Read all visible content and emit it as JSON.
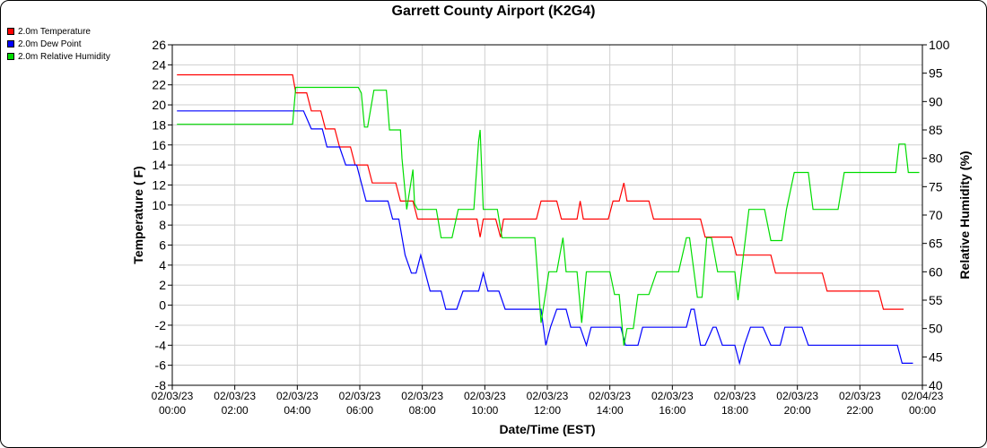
{
  "chart_data": {
    "type": "line",
    "title": "Garrett County Airport (K2G4)",
    "xlabel": "Date/Time (EST)",
    "ylabel": "Temperature ( F)",
    "y2label": "Relative Humidity (%)",
    "xlim": [
      0,
      24
    ],
    "ylim": [
      -8,
      26
    ],
    "y2lim": [
      40,
      100
    ],
    "grid": true,
    "legend_placement": "top-left",
    "x_ticks": [
      {
        "value": 0,
        "date": "02/03/23",
        "time": "00:00"
      },
      {
        "value": 2,
        "date": "02/03/23",
        "time": "02:00"
      },
      {
        "value": 4,
        "date": "02/03/23",
        "time": "04:00"
      },
      {
        "value": 6,
        "date": "02/03/23",
        "time": "06:00"
      },
      {
        "value": 8,
        "date": "02/03/23",
        "time": "08:00"
      },
      {
        "value": 10,
        "date": "02/03/23",
        "time": "10:00"
      },
      {
        "value": 12,
        "date": "02/03/23",
        "time": "12:00"
      },
      {
        "value": 14,
        "date": "02/03/23",
        "time": "14:00"
      },
      {
        "value": 16,
        "date": "02/03/23",
        "time": "16:00"
      },
      {
        "value": 18,
        "date": "02/03/23",
        "time": "18:00"
      },
      {
        "value": 20,
        "date": "02/03/23",
        "time": "20:00"
      },
      {
        "value": 22,
        "date": "02/03/23",
        "time": "22:00"
      },
      {
        "value": 24,
        "date": "02/04/23",
        "time": "00:00"
      }
    ],
    "y_ticks": [
      "26",
      "24",
      "22",
      "20",
      "18",
      "16",
      "14",
      "12",
      "10",
      "8",
      "6",
      "4",
      "2",
      "0",
      "-2",
      "-4",
      "-6",
      "-8"
    ],
    "y2_ticks": [
      "100",
      "95",
      "90",
      "85",
      "80",
      "75",
      "70",
      "65",
      "60",
      "55",
      "50",
      "45",
      "40"
    ],
    "series": [
      {
        "name": "2.0m Temperature",
        "color": "#ff0000",
        "axis": "left",
        "points": [
          [
            0.15,
            23
          ],
          [
            3.85,
            23
          ],
          [
            3.95,
            21.2
          ],
          [
            4.3,
            21.2
          ],
          [
            4.45,
            19.4
          ],
          [
            4.75,
            19.4
          ],
          [
            4.9,
            17.6
          ],
          [
            5.2,
            17.6
          ],
          [
            5.35,
            15.8
          ],
          [
            5.7,
            15.8
          ],
          [
            5.85,
            14
          ],
          [
            6.25,
            14
          ],
          [
            6.4,
            12.2
          ],
          [
            7.15,
            12.2
          ],
          [
            7.3,
            10.4
          ],
          [
            7.7,
            10.4
          ],
          [
            7.85,
            8.6
          ],
          [
            9.75,
            8.6
          ],
          [
            9.85,
            6.8
          ],
          [
            9.95,
            8.6
          ],
          [
            10.35,
            8.6
          ],
          [
            10.5,
            6.8
          ],
          [
            10.6,
            8.6
          ],
          [
            11.65,
            8.6
          ],
          [
            11.8,
            10.4
          ],
          [
            12.3,
            10.4
          ],
          [
            12.45,
            8.6
          ],
          [
            12.95,
            8.6
          ],
          [
            13.05,
            10.4
          ],
          [
            13.15,
            8.6
          ],
          [
            13.95,
            8.6
          ],
          [
            14.1,
            10.4
          ],
          [
            14.3,
            10.4
          ],
          [
            14.45,
            12.2
          ],
          [
            14.55,
            10.4
          ],
          [
            15.25,
            10.4
          ],
          [
            15.4,
            8.6
          ],
          [
            16.9,
            8.6
          ],
          [
            17.05,
            6.8
          ],
          [
            17.9,
            6.8
          ],
          [
            18.05,
            5
          ],
          [
            19.15,
            5
          ],
          [
            19.3,
            3.2
          ],
          [
            20.8,
            3.2
          ],
          [
            20.95,
            1.4
          ],
          [
            22.6,
            1.4
          ],
          [
            22.75,
            -0.4
          ],
          [
            23.4,
            -0.4
          ]
        ]
      },
      {
        "name": "2.0m Dew Point",
        "color": "#0000ff",
        "axis": "left",
        "points": [
          [
            0.15,
            19.4
          ],
          [
            4.2,
            19.4
          ],
          [
            4.45,
            17.6
          ],
          [
            4.8,
            17.6
          ],
          [
            4.95,
            15.8
          ],
          [
            5.35,
            15.8
          ],
          [
            5.55,
            14
          ],
          [
            5.9,
            14
          ],
          [
            6.05,
            12.2
          ],
          [
            6.2,
            10.4
          ],
          [
            6.9,
            10.4
          ],
          [
            7.05,
            8.6
          ],
          [
            7.25,
            8.6
          ],
          [
            7.45,
            5
          ],
          [
            7.65,
            3.2
          ],
          [
            7.8,
            3.2
          ],
          [
            7.95,
            5
          ],
          [
            8.1,
            3.2
          ],
          [
            8.25,
            1.4
          ],
          [
            8.6,
            1.4
          ],
          [
            8.75,
            -0.4
          ],
          [
            9.1,
            -0.4
          ],
          [
            9.3,
            1.4
          ],
          [
            9.8,
            1.4
          ],
          [
            9.95,
            3.2
          ],
          [
            10.1,
            1.4
          ],
          [
            10.45,
            1.4
          ],
          [
            10.65,
            -0.4
          ],
          [
            11.8,
            -0.4
          ],
          [
            11.95,
            -4
          ],
          [
            12.1,
            -2.2
          ],
          [
            12.3,
            -0.4
          ],
          [
            12.6,
            -0.4
          ],
          [
            12.75,
            -2.2
          ],
          [
            13.05,
            -2.2
          ],
          [
            13.25,
            -4
          ],
          [
            13.4,
            -2.2
          ],
          [
            14.35,
            -2.2
          ],
          [
            14.5,
            -4
          ],
          [
            14.9,
            -4
          ],
          [
            15.05,
            -2.2
          ],
          [
            16.45,
            -2.2
          ],
          [
            16.6,
            -0.4
          ],
          [
            16.7,
            -0.4
          ],
          [
            16.9,
            -4
          ],
          [
            17.05,
            -4
          ],
          [
            17.3,
            -2.2
          ],
          [
            17.4,
            -2.2
          ],
          [
            17.6,
            -4
          ],
          [
            18.0,
            -4
          ],
          [
            18.15,
            -5.8
          ],
          [
            18.3,
            -4
          ],
          [
            18.5,
            -2.2
          ],
          [
            18.9,
            -2.2
          ],
          [
            19.15,
            -4
          ],
          [
            19.45,
            -4
          ],
          [
            19.6,
            -2.2
          ],
          [
            20.15,
            -2.2
          ],
          [
            20.35,
            -4
          ],
          [
            23.2,
            -4
          ],
          [
            23.35,
            -5.8
          ],
          [
            23.7,
            -5.8
          ]
        ]
      },
      {
        "name": "2.0m Relative Humidity",
        "color": "#00dd00",
        "axis": "right",
        "points": [
          [
            0.15,
            86
          ],
          [
            3.85,
            86
          ],
          [
            3.95,
            92.5
          ],
          [
            5.95,
            92.5
          ],
          [
            6.05,
            91.5
          ],
          [
            6.15,
            85.5
          ],
          [
            6.25,
            85.5
          ],
          [
            6.45,
            92
          ],
          [
            6.85,
            92
          ],
          [
            6.95,
            85
          ],
          [
            7.3,
            85
          ],
          [
            7.35,
            80
          ],
          [
            7.5,
            71
          ],
          [
            7.7,
            78
          ],
          [
            7.75,
            72
          ],
          [
            7.85,
            71
          ],
          [
            8.45,
            71
          ],
          [
            8.6,
            66
          ],
          [
            8.95,
            66
          ],
          [
            9.15,
            71
          ],
          [
            9.65,
            71
          ],
          [
            9.8,
            83
          ],
          [
            9.85,
            85
          ],
          [
            9.95,
            71
          ],
          [
            10.4,
            71
          ],
          [
            10.55,
            66
          ],
          [
            11.6,
            66
          ],
          [
            11.8,
            51
          ],
          [
            12.05,
            60
          ],
          [
            12.1,
            60
          ],
          [
            12.3,
            60
          ],
          [
            12.5,
            66
          ],
          [
            12.6,
            60
          ],
          [
            12.95,
            60
          ],
          [
            13.1,
            51
          ],
          [
            13.25,
            60
          ],
          [
            14.0,
            60
          ],
          [
            14.15,
            56
          ],
          [
            14.3,
            56
          ],
          [
            14.45,
            47
          ],
          [
            14.55,
            50
          ],
          [
            14.75,
            50
          ],
          [
            14.9,
            56
          ],
          [
            15.25,
            56
          ],
          [
            15.5,
            60
          ],
          [
            16.2,
            60
          ],
          [
            16.45,
            66
          ],
          [
            16.55,
            66
          ],
          [
            16.8,
            55.5
          ],
          [
            16.95,
            55.5
          ],
          [
            17.1,
            66
          ],
          [
            17.25,
            66
          ],
          [
            17.45,
            60
          ],
          [
            18.0,
            60
          ],
          [
            18.1,
            55
          ],
          [
            18.45,
            71
          ],
          [
            18.95,
            71
          ],
          [
            19.15,
            65.5
          ],
          [
            19.5,
            65.5
          ],
          [
            19.65,
            71
          ],
          [
            19.9,
            77.5
          ],
          [
            20.35,
            77.5
          ],
          [
            20.5,
            71
          ],
          [
            21.3,
            71
          ],
          [
            21.5,
            77.5
          ],
          [
            23.15,
            77.5
          ],
          [
            23.25,
            82.5
          ],
          [
            23.45,
            82.5
          ],
          [
            23.55,
            77.5
          ],
          [
            23.9,
            77.5
          ]
        ]
      }
    ]
  }
}
